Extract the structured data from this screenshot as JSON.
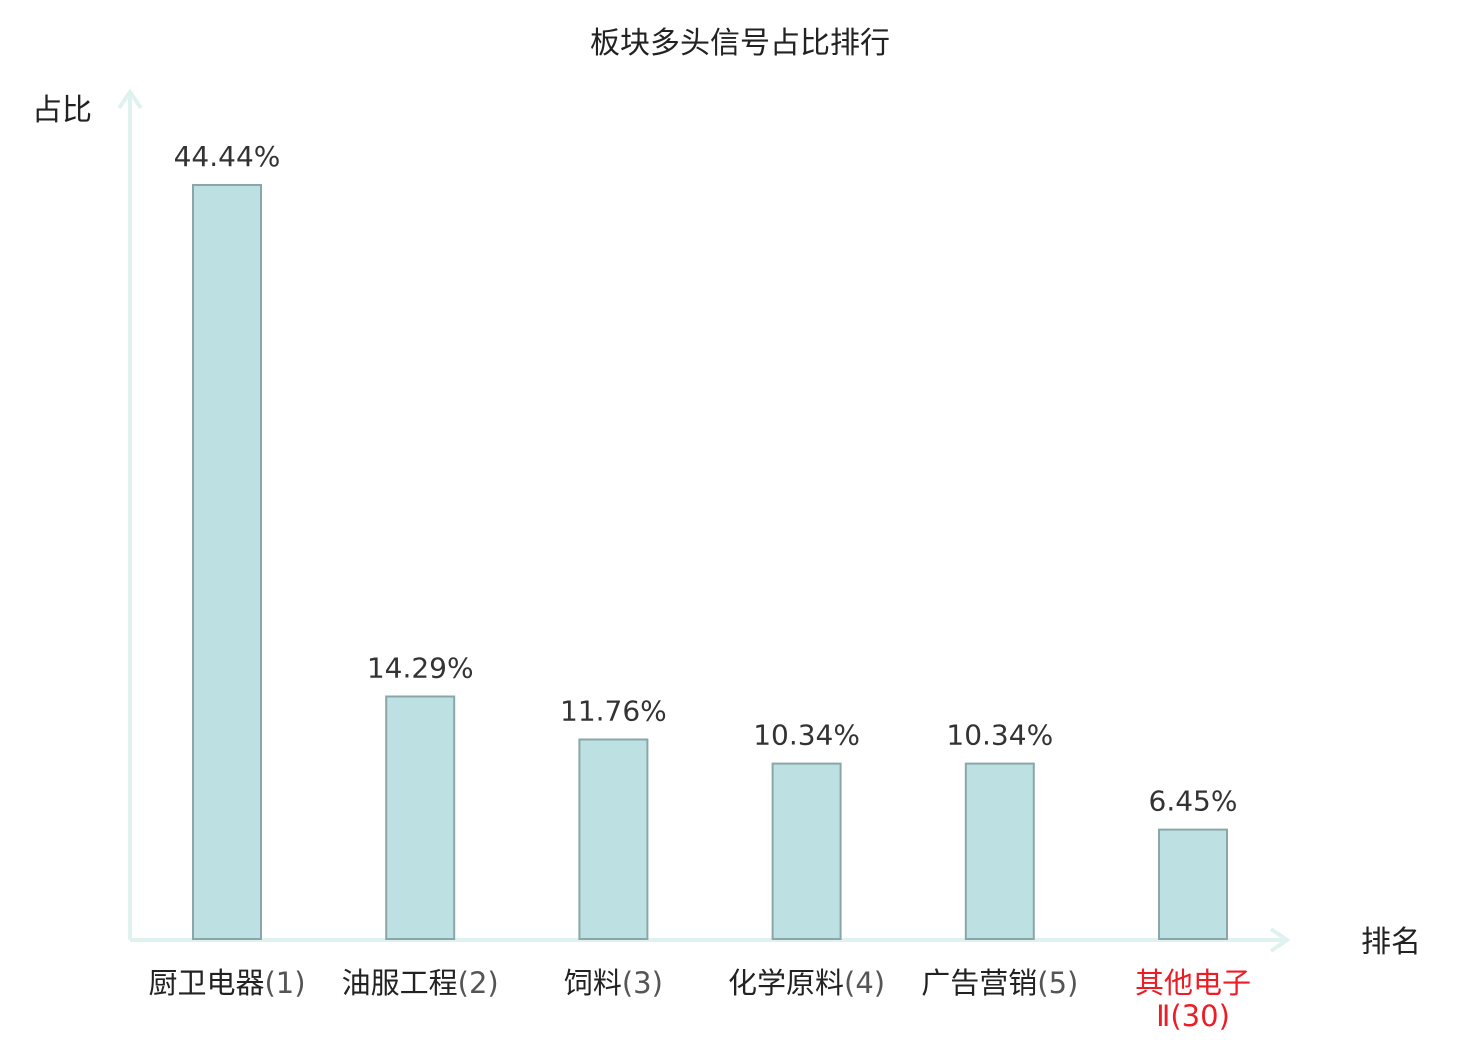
{
  "chart_data": {
    "type": "bar",
    "title": "板块多头信号占比排行",
    "ylabel": "占比",
    "xlabel": "排名",
    "categories": [
      {
        "name": "厨卫电器",
        "rank": "(1)"
      },
      {
        "name": "油服工程",
        "rank": "(2)"
      },
      {
        "name": "饲料",
        "rank": "(3)"
      },
      {
        "name": "化学原料",
        "rank": "(4)"
      },
      {
        "name": "广告营销",
        "rank": "(5)"
      },
      {
        "name": "其他电子",
        "rank": "Ⅱ(30)"
      }
    ],
    "values": [
      44.44,
      14.29,
      11.76,
      10.34,
      10.34,
      6.45
    ],
    "value_labels": [
      "44.44%",
      "14.29%",
      "11.76%",
      "10.34%",
      "10.34%",
      "6.45%"
    ],
    "highlight_index": 5,
    "ylim": [
      0,
      44.44
    ],
    "grid": false,
    "colors": {
      "bar_fill": "#bde0e3",
      "bar_stroke": "#8aa6a8",
      "axis": "#e0f2ef",
      "highlight_text": "#ee1c25"
    }
  }
}
